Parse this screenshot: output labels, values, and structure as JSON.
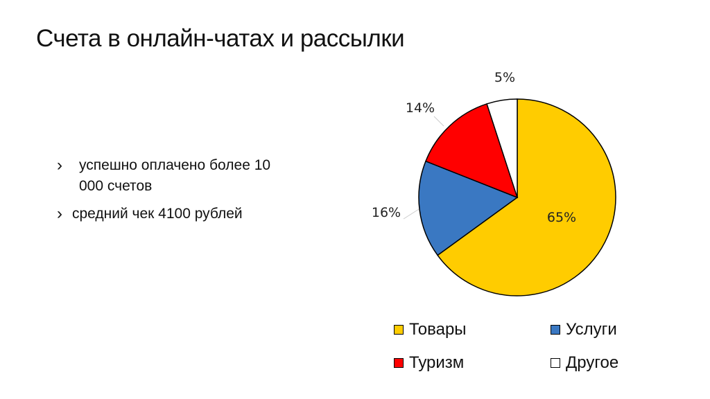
{
  "slide": {
    "title": "Счета в онлайн-чатах и рассылки",
    "bullets": [
      {
        "text": "успешно оплачено более 10 000 счетов"
      },
      {
        "text": "средний чек 4100 рублей"
      }
    ]
  },
  "chart_data": {
    "type": "pie",
    "title": "",
    "categories": [
      "Товары",
      "Услуги",
      "Туризм",
      "Другое"
    ],
    "values": [
      65,
      16,
      14,
      5
    ],
    "labels": [
      "65%",
      "16%",
      "14%",
      "5%"
    ],
    "colors": [
      "#FFCC00",
      "#3A78C2",
      "#FF0000",
      "#FFFFFF"
    ],
    "legend_position": "bottom"
  }
}
